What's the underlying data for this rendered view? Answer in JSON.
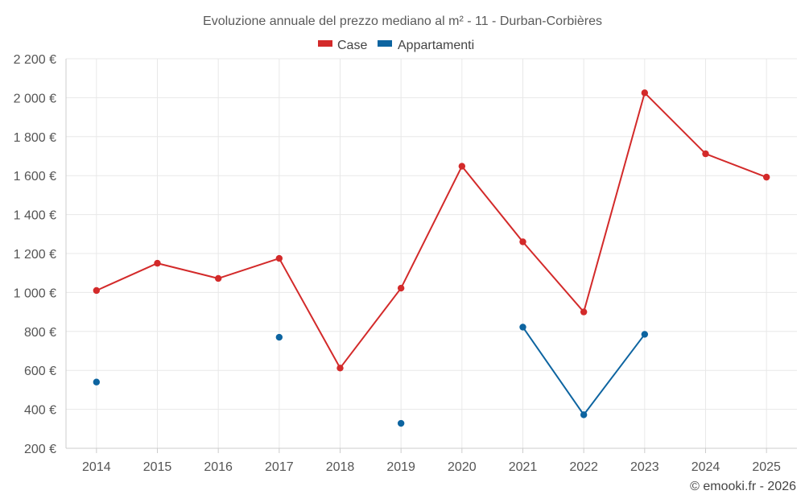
{
  "chart_data": {
    "type": "line",
    "title": "Evoluzione annuale del prezzo mediano al m² - 11 - Durban-Corbières",
    "categories": [
      "2014",
      "2015",
      "2016",
      "2017",
      "2018",
      "2019",
      "2020",
      "2021",
      "2022",
      "2023",
      "2024",
      "2025"
    ],
    "series": [
      {
        "name": "Case",
        "color": "#d32a2a",
        "values": [
          1010,
          1150,
          1072,
          1175,
          612,
          1022,
          1648,
          1260,
          900,
          2025,
          1712,
          1592
        ]
      },
      {
        "name": "Appartamenti",
        "color": "#0d64a0",
        "values": [
          540,
          null,
          null,
          770,
          null,
          328,
          null,
          822,
          372,
          785,
          null,
          null
        ]
      }
    ],
    "ylim": [
      200,
      2200
    ],
    "yticks": [
      200,
      400,
      600,
      800,
      1000,
      1200,
      1400,
      1600,
      1800,
      2000,
      2200
    ],
    "ytick_labels": [
      "200 €",
      "400 €",
      "600 €",
      "800 €",
      "1 000 €",
      "1 200 €",
      "1 400 €",
      "1 600 €",
      "1 800 €",
      "2 000 €",
      "2 200 €"
    ],
    "xlabel": "",
    "ylabel": "",
    "legend_position": "top-center",
    "grid": true
  },
  "credit": "© emooki.fr - 2026"
}
